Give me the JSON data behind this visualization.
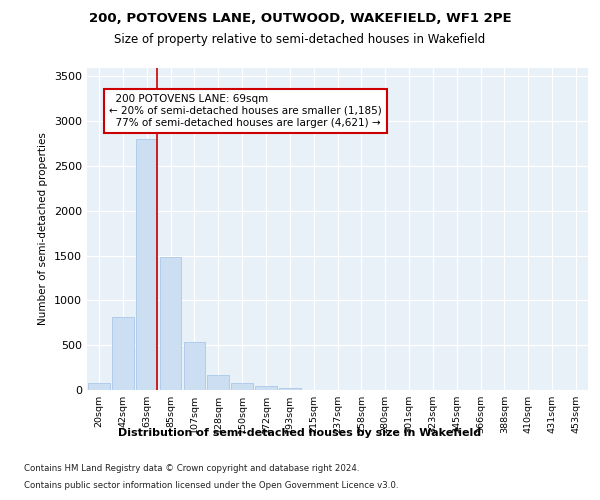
{
  "title_line1": "200, POTOVENS LANE, OUTWOOD, WAKEFIELD, WF1 2PE",
  "title_line2": "Size of property relative to semi-detached houses in Wakefield",
  "xlabel": "Distribution of semi-detached houses by size in Wakefield",
  "ylabel": "Number of semi-detached properties",
  "categories": [
    "20sqm",
    "42sqm",
    "63sqm",
    "85sqm",
    "107sqm",
    "128sqm",
    "150sqm",
    "172sqm",
    "193sqm",
    "215sqm",
    "237sqm",
    "258sqm",
    "280sqm",
    "301sqm",
    "323sqm",
    "345sqm",
    "366sqm",
    "388sqm",
    "410sqm",
    "431sqm",
    "453sqm"
  ],
  "values": [
    75,
    820,
    2800,
    1480,
    535,
    165,
    75,
    45,
    25,
    0,
    0,
    0,
    0,
    0,
    0,
    0,
    0,
    0,
    0,
    0,
    0
  ],
  "bar_color": "#ccdff2",
  "bar_edge_color": "#aac8e8",
  "red_line_color": "#cc0000",
  "annotation_box_color": "#ffffff",
  "annotation_box_edge": "#cc0000",
  "subject_label": "200 POTOVENS LANE: 69sqm",
  "smaller_pct": "20%",
  "smaller_count": "1,185",
  "larger_pct": "77%",
  "larger_count": "4,621",
  "ylim": [
    0,
    3600
  ],
  "yticks": [
    0,
    500,
    1000,
    1500,
    2000,
    2500,
    3000,
    3500
  ],
  "bg_color": "#e8f0f8",
  "title1_fontsize": 9.5,
  "title2_fontsize": 8.5,
  "footnote1": "Contains HM Land Registry data © Crown copyright and database right 2024.",
  "footnote2": "Contains public sector information licensed under the Open Government Licence v3.0."
}
